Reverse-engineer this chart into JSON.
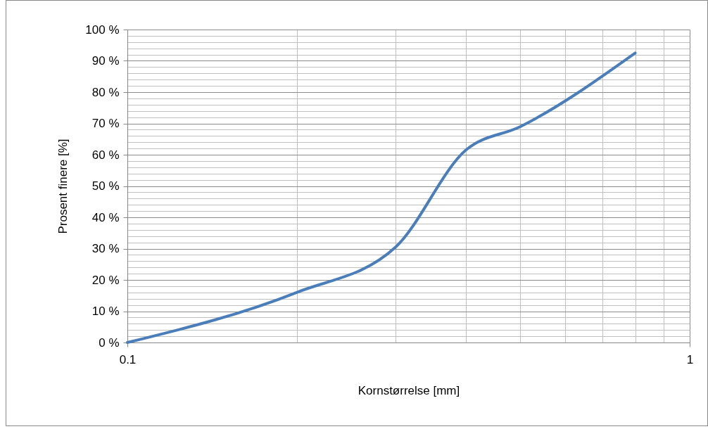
{
  "chart_data": {
    "type": "line",
    "xlabel": "Kornstørrelse [mm]",
    "ylabel": "Prosent finere [%]",
    "log": "x",
    "grid": true,
    "x": [
      0.1,
      0.2,
      0.3,
      0.4,
      0.5,
      0.8
    ],
    "series": [
      {
        "color": "#4a7ebb",
        "values": [
          0,
          16,
          30.5,
          61.5,
          69,
          92.5
        ]
      }
    ],
    "xlim": [
      0.1,
      1
    ],
    "xticks": [
      {
        "value": 0.1,
        "label": "0.1"
      },
      {
        "value": 0.2,
        "label": null
      },
      {
        "value": 0.3,
        "label": null
      },
      {
        "value": 0.4,
        "label": null
      },
      {
        "value": 0.5,
        "label": null
      },
      {
        "value": 0.6,
        "label": null
      },
      {
        "value": 0.7,
        "label": null
      },
      {
        "value": 0.8,
        "label": null
      },
      {
        "value": 0.9,
        "label": null
      },
      {
        "value": 1,
        "label": "1"
      }
    ],
    "ylim": [
      0,
      100
    ],
    "yticks": [
      {
        "value": 0,
        "label": "0 %"
      },
      {
        "value": 2,
        "label": null
      },
      {
        "value": 4,
        "label": null
      },
      {
        "value": 6,
        "label": null
      },
      {
        "value": 8,
        "label": null
      },
      {
        "value": 10,
        "label": "10 %"
      },
      {
        "value": 12,
        "label": null
      },
      {
        "value": 14,
        "label": null
      },
      {
        "value": 16,
        "label": null
      },
      {
        "value": 18,
        "label": null
      },
      {
        "value": 20,
        "label": "20 %"
      },
      {
        "value": 22,
        "label": null
      },
      {
        "value": 24,
        "label": null
      },
      {
        "value": 26,
        "label": null
      },
      {
        "value": 28,
        "label": null
      },
      {
        "value": 30,
        "label": "30 %"
      },
      {
        "value": 32,
        "label": null
      },
      {
        "value": 34,
        "label": null
      },
      {
        "value": 36,
        "label": null
      },
      {
        "value": 38,
        "label": null
      },
      {
        "value": 40,
        "label": "40 %"
      },
      {
        "value": 42,
        "label": null
      },
      {
        "value": 44,
        "label": null
      },
      {
        "value": 46,
        "label": null
      },
      {
        "value": 48,
        "label": null
      },
      {
        "value": 50,
        "label": "50 %"
      },
      {
        "value": 52,
        "label": null
      },
      {
        "value": 54,
        "label": null
      },
      {
        "value": 56,
        "label": null
      },
      {
        "value": 58,
        "label": null
      },
      {
        "value": 60,
        "label": "60 %"
      },
      {
        "value": 62,
        "label": null
      },
      {
        "value": 64,
        "label": null
      },
      {
        "value": 66,
        "label": null
      },
      {
        "value": 68,
        "label": null
      },
      {
        "value": 70,
        "label": "70 %"
      },
      {
        "value": 72,
        "label": null
      },
      {
        "value": 74,
        "label": null
      },
      {
        "value": 76,
        "label": null
      },
      {
        "value": 78,
        "label": null
      },
      {
        "value": 80,
        "label": "80 %"
      },
      {
        "value": 82,
        "label": null
      },
      {
        "value": 84,
        "label": null
      },
      {
        "value": 86,
        "label": null
      },
      {
        "value": 88,
        "label": null
      },
      {
        "value": 90,
        "label": "90 %"
      },
      {
        "value": 92,
        "label": null
      },
      {
        "value": 94,
        "label": null
      },
      {
        "value": 96,
        "label": null
      },
      {
        "value": 98,
        "label": null
      },
      {
        "value": 100,
        "label": "100 %"
      }
    ]
  }
}
